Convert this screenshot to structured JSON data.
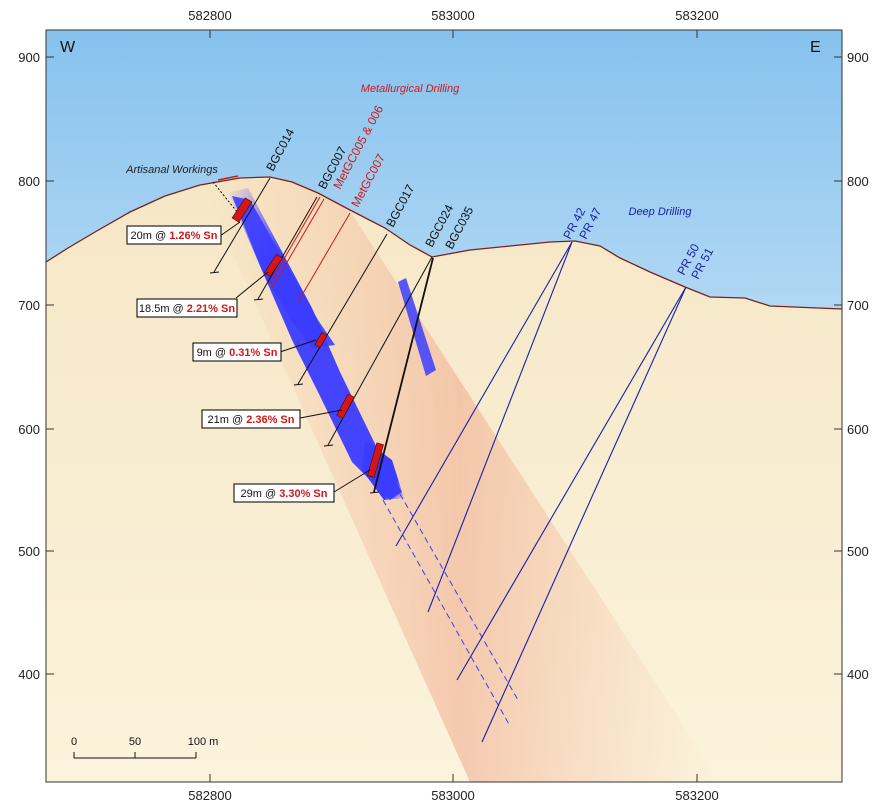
{
  "x_axis": {
    "ticks": [
      "582800",
      "583000",
      "583200"
    ]
  },
  "y_axis": {
    "ticks": [
      "900",
      "800",
      "700",
      "600",
      "500",
      "400"
    ]
  },
  "compass": {
    "west": "W",
    "east": "E"
  },
  "notes": {
    "metallurgical": "Metallurgical Drilling",
    "artisanal": "Artisanal Workings",
    "deep": "Deep Drilling"
  },
  "holes": {
    "black": [
      "BGC014",
      "BGC007",
      "BGC017",
      "BGC024",
      "BGC035"
    ],
    "red": [
      "MetGC005 & 006",
      "MetGC007"
    ],
    "blue": [
      "PR 42",
      "PR 47",
      "PR 50",
      "PR 51"
    ]
  },
  "intercepts": [
    {
      "prefix": "20m @ ",
      "grade": "1.26% Sn"
    },
    {
      "prefix": "18.5m @ ",
      "grade": "2.21% Sn"
    },
    {
      "prefix": "9m @ ",
      "grade": "0.31% Sn"
    },
    {
      "prefix": "21m @ ",
      "grade": "2.36% Sn"
    },
    {
      "prefix": "29m @ ",
      "grade": "3.30% Sn"
    }
  ],
  "scale_bar": {
    "labels": [
      "0",
      "50",
      "100 m"
    ]
  },
  "colors": {
    "sky_top": "#8cc4ee",
    "ground": "#f8ecc8",
    "ground_line": "#7a2020",
    "mineralisation": "#3a3cff",
    "black_hole": "#111111",
    "met_hole": "#d01818",
    "deep_hole": "#1a20a8",
    "grade_red": "#d01818"
  }
}
